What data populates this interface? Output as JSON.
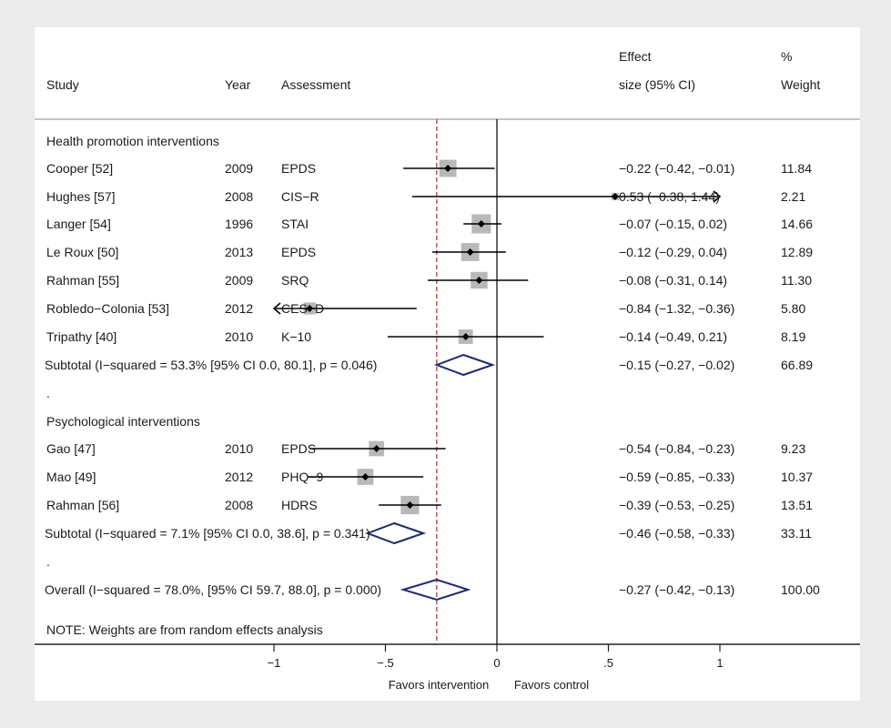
{
  "header": {
    "study": "Study",
    "year": "Year",
    "assessment": "Assessment",
    "effect_line1": "Effect",
    "effect_line2": "size (95% CI)",
    "weight_line1": "%",
    "weight_line2": "Weight"
  },
  "groups": [
    {
      "title": "Health promotion interventions",
      "subtotal_label": "Subtotal (I−squared = 53.3% [95% CI 0.0, 80.1], p = 0.046)",
      "subtotal_ci": "−0.15 (−0.27, −0.02)",
      "subtotal_weight": "66.89",
      "spacer": "."
    },
    {
      "title": "Psychological interventions",
      "subtotal_label": "Subtotal (I−squared = 7.1% [95% CI 0.0, 38.6], p = 0.341)",
      "subtotal_ci": "−0.46 (−0.58, −0.33)",
      "subtotal_weight": "33.11",
      "spacer": "."
    }
  ],
  "studies": [
    {
      "study": "Cooper [52]",
      "year": "2009",
      "assessment": "EPDS",
      "ci_text": "−0.22 (−0.42, −0.01)",
      "weight": "11.84"
    },
    {
      "study": "Hughes [57]",
      "year": "2008",
      "assessment": "CIS−R",
      "ci_text": "0.53 (−0.38, 1.44)",
      "weight": "2.21"
    },
    {
      "study": "Langer [54]",
      "year": "1996",
      "assessment": "STAI",
      "ci_text": "−0.07 (−0.15, 0.02)",
      "weight": "14.66"
    },
    {
      "study": "Le Roux [50]",
      "year": "2013",
      "assessment": "EPDS",
      "ci_text": "−0.12 (−0.29, 0.04)",
      "weight": "12.89"
    },
    {
      "study": "Rahman [55]",
      "year": "2009",
      "assessment": "SRQ",
      "ci_text": "−0.08 (−0.31, 0.14)",
      "weight": "11.30"
    },
    {
      "study": "Robledo−Colonia [53]",
      "year": "2012",
      "assessment": "CES−D",
      "ci_text": "−0.84 (−1.32, −0.36)",
      "weight": "5.80"
    },
    {
      "study": "Tripathy [40]",
      "year": "2010",
      "assessment": "K−10",
      "ci_text": "−0.14 (−0.49, 0.21)",
      "weight": "8.19"
    },
    {
      "study": "Gao [47]",
      "year": "2010",
      "assessment": "EPDS",
      "ci_text": "−0.54 (−0.84, −0.23)",
      "weight": "9.23"
    },
    {
      "study": "Mao [49]",
      "year": "2012",
      "assessment": "PHQ−9",
      "ci_text": "−0.59 (−0.85, −0.33)",
      "weight": "10.37"
    },
    {
      "study": "Rahman [56]",
      "year": "2008",
      "assessment": "HDRS",
      "ci_text": "−0.39 (−0.53, −0.25)",
      "weight": "13.51"
    }
  ],
  "overall": {
    "label": "Overall (I−squared = 78.0%, [95% CI 59.7, 88.0], p = 0.000)",
    "ci_text": "−0.27 (−0.42, −0.13)",
    "weight": "100.00"
  },
  "note": "NOTE: Weights are from random effects analysis",
  "axis": {
    "ticks": [
      "−1",
      "−.5",
      "0",
      ".5",
      "1"
    ],
    "label_left": "Favors intervention",
    "label_right": "Favors control"
  },
  "colors": {
    "diamond": "#1f2a6b",
    "null_line": "#000000",
    "overall_line": "#a0302c",
    "box": "#b8b8b8",
    "background": "#ebebeb"
  },
  "chart_data": {
    "type": "forest",
    "xlim": [
      -1,
      1
    ],
    "x_ticks": [
      -1,
      -0.5,
      0,
      0.5,
      1
    ],
    "null_value": 0,
    "overall_estimate": -0.27,
    "studies": [
      {
        "name": "Cooper [52]",
        "group": 0,
        "estimate": -0.22,
        "lower": -0.42,
        "upper": -0.01,
        "weight": 11.84
      },
      {
        "name": "Hughes [57]",
        "group": 0,
        "estimate": 0.53,
        "lower": -0.38,
        "upper": 1.44,
        "weight": 2.21
      },
      {
        "name": "Langer [54]",
        "group": 0,
        "estimate": -0.07,
        "lower": -0.15,
        "upper": 0.02,
        "weight": 14.66
      },
      {
        "name": "Le Roux [50]",
        "group": 0,
        "estimate": -0.12,
        "lower": -0.29,
        "upper": 0.04,
        "weight": 12.89
      },
      {
        "name": "Rahman [55]",
        "group": 0,
        "estimate": -0.08,
        "lower": -0.31,
        "upper": 0.14,
        "weight": 11.3
      },
      {
        "name": "Robledo−Colonia [53]",
        "group": 0,
        "estimate": -0.84,
        "lower": -1.32,
        "upper": -0.36,
        "weight": 5.8
      },
      {
        "name": "Tripathy [40]",
        "group": 0,
        "estimate": -0.14,
        "lower": -0.49,
        "upper": 0.21,
        "weight": 8.19
      },
      {
        "name": "Gao [47]",
        "group": 1,
        "estimate": -0.54,
        "lower": -0.84,
        "upper": -0.23,
        "weight": 9.23
      },
      {
        "name": "Mao [49]",
        "group": 1,
        "estimate": -0.59,
        "lower": -0.85,
        "upper": -0.33,
        "weight": 10.37
      },
      {
        "name": "Rahman [56]",
        "group": 1,
        "estimate": -0.39,
        "lower": -0.53,
        "upper": -0.25,
        "weight": 13.51
      }
    ],
    "subtotals": [
      {
        "group": 0,
        "estimate": -0.15,
        "lower": -0.27,
        "upper": -0.02,
        "weight": 66.89
      },
      {
        "group": 1,
        "estimate": -0.46,
        "lower": -0.58,
        "upper": -0.33,
        "weight": 33.11
      }
    ],
    "overall": {
      "estimate": -0.27,
      "lower": -0.42,
      "upper": -0.13,
      "weight": 100.0
    }
  }
}
